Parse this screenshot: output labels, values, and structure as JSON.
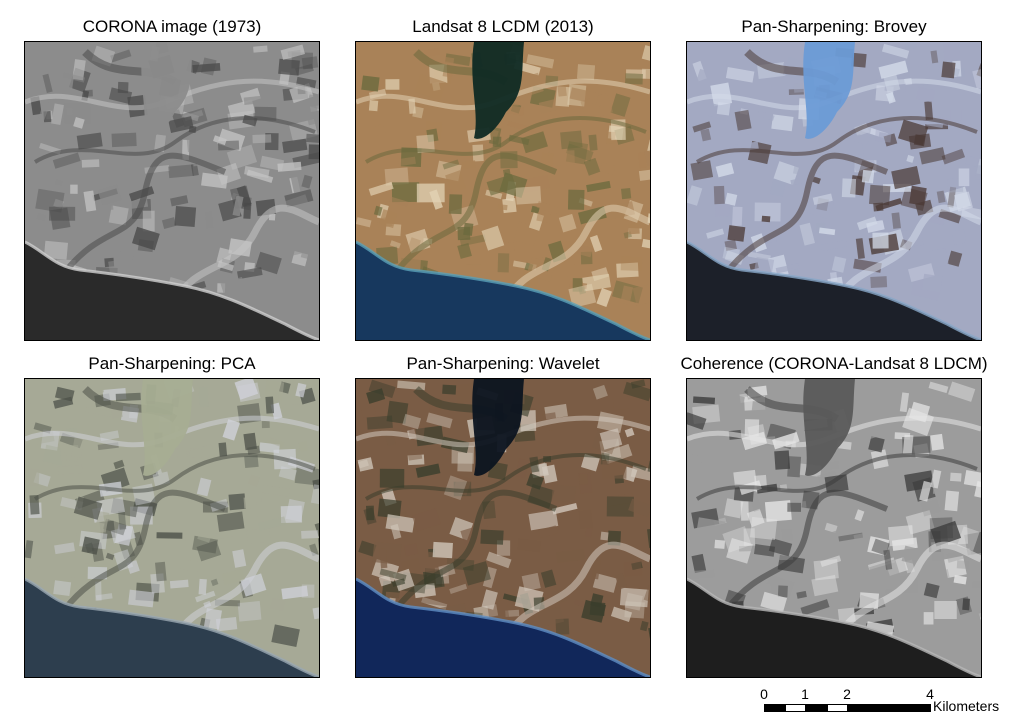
{
  "panels": [
    {
      "title": "CORONA image (1973)",
      "palette": {
        "land": "#8c8c8c",
        "land_dark": "#4a4a4a",
        "land_light": "#c4c4c4",
        "sea": "#2a2a2a",
        "coast": "#d0d0d0",
        "reservoir": "#8c8c8c"
      }
    },
    {
      "title": "Landsat 8 LCDM (2013)",
      "palette": {
        "land": "#a98258",
        "land_dark": "#6b6a3e",
        "land_light": "#e2d2b4",
        "sea": "#17385e",
        "coast": "#5aa0b8",
        "reservoir": "#0f2a24"
      }
    },
    {
      "title": "Pan-Sharpening: Brovey",
      "palette": {
        "land": "#a3a9c2",
        "land_dark": "#4b3a36",
        "land_light": "#d4dbe9",
        "sea": "#1c2029",
        "coast": "#88a8c8",
        "reservoir": "#6b9bd6"
      }
    },
    {
      "title": "Pan-Sharpening: PCA",
      "palette": {
        "land": "#a6a996",
        "land_dark": "#4c5048",
        "land_light": "#cfd1d8",
        "sea": "#2d3e4e",
        "coast": "#9aa8b2",
        "reservoir": "#a6ad92"
      }
    },
    {
      "title": "Pan-Sharpening: Wavelet",
      "palette": {
        "land": "#7a5c45",
        "land_dark": "#3a3e2c",
        "land_light": "#d2c9bd",
        "sea": "#11275a",
        "coast": "#5f8fc4",
        "reservoir": "#0c1420"
      }
    },
    {
      "title": "Coherence (CORONA-Landsat 8 LDCM)",
      "palette": {
        "land": "#9c9c9c",
        "land_dark": "#3c3c3c",
        "land_light": "#e6e6e6",
        "sea": "#1e1e1e",
        "coast": "#b8b8b8",
        "reservoir": "#5a5a5a"
      }
    }
  ],
  "scale_bar": {
    "ticks": [
      "0",
      "1",
      "2",
      "4"
    ],
    "unit": "Kilometers"
  }
}
